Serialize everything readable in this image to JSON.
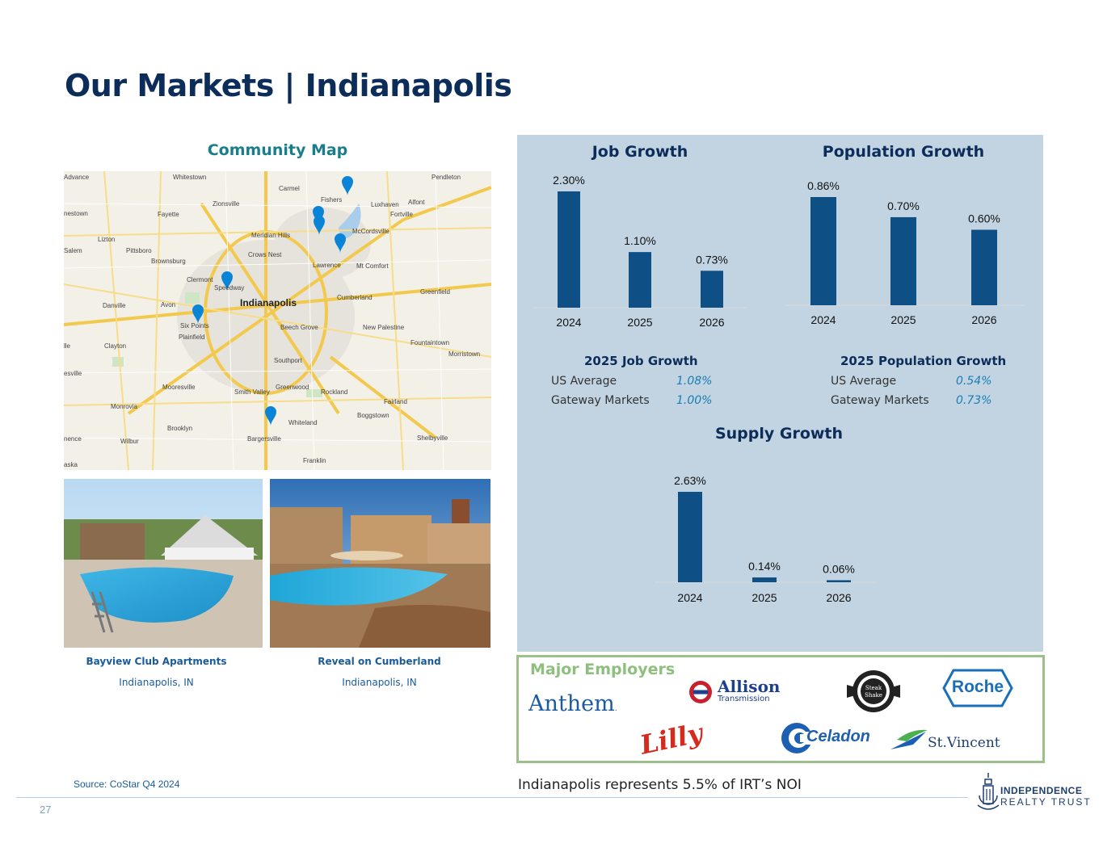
{
  "page": {
    "title": "Our Markets | Indianapolis",
    "page_number": "27",
    "source": "Source: CoStar Q4 2024",
    "noi_note": "Indianapolis represents 5.5% of IRT’s NOI"
  },
  "map": {
    "heading": "Community Map",
    "labels": [
      "Advance",
      "Whitestown",
      "Carmel",
      "Fishers",
      "Pendleton",
      "Zionsville",
      "Luxhaven",
      "Alfont",
      "Fortville",
      "nestown",
      "Fayette",
      "Lizton",
      "Pittsboro",
      "Meridian Hills",
      "McCordsville",
      "Salem",
      "Brownsburg",
      "Crows Nest",
      "Lawrence",
      "Mt Comfort",
      "Clermont",
      "Speedway",
      "Indianapolis",
      "Cumberland",
      "Greenfield",
      "Danville",
      "Avon",
      "Six Points",
      "Beech Grove",
      "New Palestine",
      "Plainfield",
      "Clayton",
      "Fountaintown",
      "lle",
      "Morristown",
      "Southport",
      "esville",
      "Mooresville",
      "Smith Valley",
      "Greenwood",
      "Rockland",
      "Monrovia",
      "Fairland",
      "Boggstown",
      "Brooklyn",
      "Whiteland",
      "nence",
      "Wilbur",
      "Bargersville",
      "Shelbyville",
      "Franklin",
      "aska"
    ]
  },
  "properties": [
    {
      "name": "Bayview Club Apartments",
      "location": "Indianapolis, IN"
    },
    {
      "name": "Reveal on Cumberland",
      "location": "Indianapolis, IN"
    }
  ],
  "charts": {
    "job": {
      "title": "Job Growth"
    },
    "population": {
      "title": "Population Growth"
    },
    "supply": {
      "title": "Supply Growth"
    }
  },
  "chart_data": [
    {
      "type": "bar",
      "title": "Job Growth",
      "categories": [
        "2024",
        "2025",
        "2026"
      ],
      "values": [
        2.3,
        1.1,
        0.73
      ],
      "labels": [
        "2.30%",
        "1.10%",
        "0.73%"
      ],
      "unit": "%",
      "color": "#0e4f86"
    },
    {
      "type": "bar",
      "title": "Population Growth",
      "categories": [
        "2024",
        "2025",
        "2026"
      ],
      "values": [
        0.86,
        0.7,
        0.6
      ],
      "labels": [
        "0.86%",
        "0.70%",
        "0.60%"
      ],
      "unit": "%",
      "color": "#0e4f86"
    },
    {
      "type": "bar",
      "title": "Supply Growth",
      "categories": [
        "2024",
        "2025",
        "2026"
      ],
      "values": [
        2.63,
        0.14,
        0.06
      ],
      "labels": [
        "2.63%",
        "0.14%",
        "0.06%"
      ],
      "unit": "%",
      "color": "#0e4f86"
    }
  ],
  "job_stats": {
    "heading": "2025 Job Growth",
    "rows": [
      {
        "label": "US Average",
        "value": "1.08%"
      },
      {
        "label": "Gateway Markets",
        "value": "1.00%"
      }
    ]
  },
  "pop_stats": {
    "heading": "2025 Population Growth",
    "rows": [
      {
        "label": "US Average",
        "value": "0.54%"
      },
      {
        "label": "Gateway Markets",
        "value": "0.73%"
      }
    ]
  },
  "employers": {
    "heading": "Major Employers",
    "logos": [
      {
        "icon": "anthem-logo",
        "text": "Anthem"
      },
      {
        "icon": "allison-transmission-logo",
        "text": "Allison",
        "subtext": "Transmission"
      },
      {
        "icon": "steak-n-shake-logo"
      },
      {
        "icon": "roche-logo",
        "text": "Roche"
      },
      {
        "icon": "lilly-logo",
        "text": "Lilly"
      },
      {
        "icon": "celadon-logo",
        "text": "Celadon"
      },
      {
        "icon": "st-vincent-logo",
        "text": "St.Vincent"
      }
    ]
  },
  "brand": {
    "line1": "INDEPENDENCE",
    "line2": "REALTY TRUST"
  }
}
